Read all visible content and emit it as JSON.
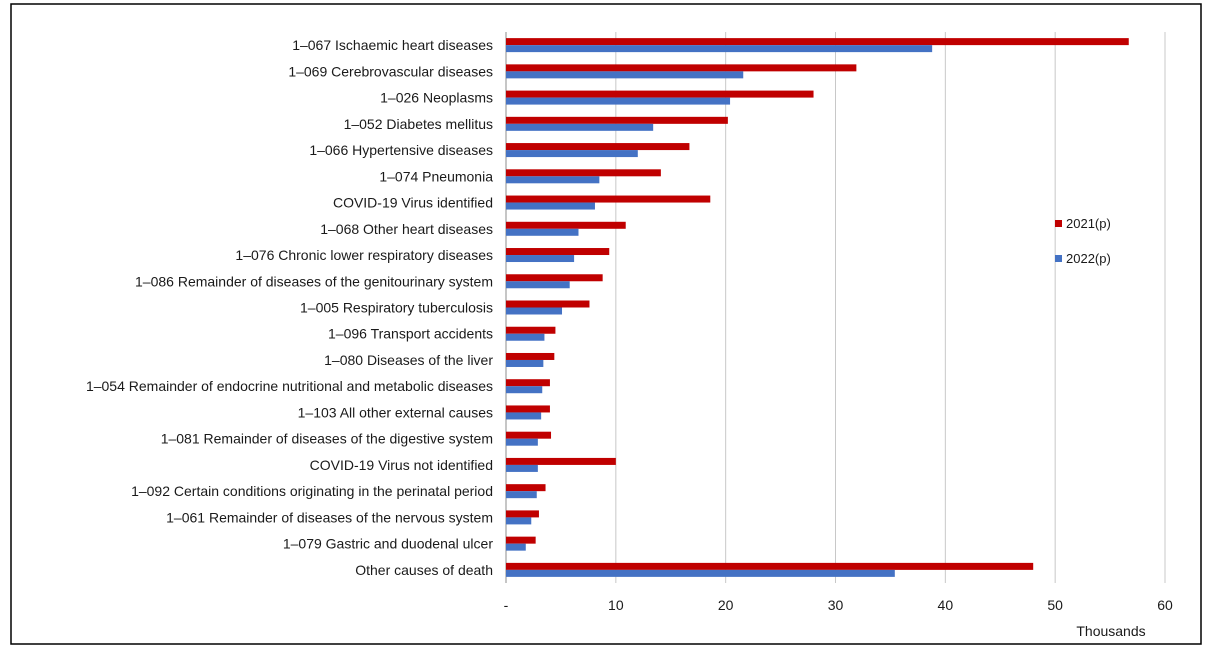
{
  "chart_data": {
    "type": "bar",
    "orientation": "horizontal",
    "title": "",
    "xlabel": "",
    "ylabel": "",
    "x_unit_label": "Thousands",
    "xlim": [
      0,
      60
    ],
    "x_ticks": [
      {
        "value": 0,
        "label": "-"
      },
      {
        "value": 10,
        "label": "10"
      },
      {
        "value": 20,
        "label": "20"
      },
      {
        "value": 30,
        "label": "30"
      },
      {
        "value": 40,
        "label": "40"
      },
      {
        "value": 50,
        "label": "50"
      },
      {
        "value": 60,
        "label": "60"
      }
    ],
    "grid": "vertical",
    "legend_position": "right",
    "categories": [
      "1–067 Ischaemic heart diseases",
      "1–069 Cerebrovascular diseases",
      "1–026 Neoplasms",
      "1–052 Diabetes mellitus",
      "1–066 Hypertensive diseases",
      "1–074 Pneumonia",
      "COVID-19 Virus identified",
      "1–068 Other heart diseases",
      "1–076 Chronic lower respiratory diseases",
      "1–086 Remainder of diseases of the genitourinary system",
      "1–005 Respiratory tuberculosis",
      "1–096 Transport accidents",
      "1–080 Diseases of the liver",
      "1–054 Remainder of endocrine nutritional and metabolic diseases",
      "1–103 All other external causes",
      "1–081 Remainder of diseases of the digestive system",
      "COVID-19 Virus not identified",
      "1–092 Certain conditions originating in the perinatal period",
      "1–061 Remainder of diseases of the nervous system",
      "1–079 Gastric and duodenal ulcer",
      "Other causes of death"
    ],
    "series": [
      {
        "name": "2021(p)",
        "color": "#c00000",
        "values": [
          56.7,
          31.9,
          28.0,
          20.2,
          16.7,
          14.1,
          18.6,
          10.9,
          9.4,
          8.8,
          7.6,
          4.5,
          4.4,
          4.0,
          4.0,
          4.1,
          10.0,
          3.6,
          3.0,
          2.7,
          48.0
        ]
      },
      {
        "name": "2022(p)",
        "color": "#4472c4",
        "values": [
          38.8,
          21.6,
          20.4,
          13.4,
          12.0,
          8.5,
          8.1,
          6.6,
          6.2,
          5.8,
          5.1,
          3.5,
          3.4,
          3.3,
          3.2,
          2.9,
          2.9,
          2.8,
          2.3,
          1.8,
          35.4
        ]
      }
    ]
  }
}
